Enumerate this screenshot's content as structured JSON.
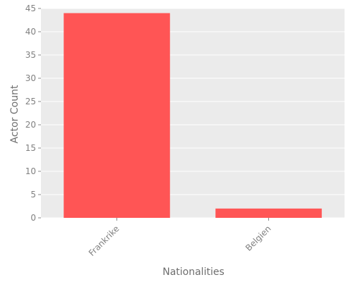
{
  "chart_data": {
    "type": "bar",
    "categories": [
      "Frankrike",
      "Belgien"
    ],
    "values": [
      44,
      2
    ],
    "xlabel": "Nationalities",
    "ylabel": "Actor Count",
    "ylim": [
      0,
      45
    ],
    "yticks": [
      0,
      5,
      10,
      15,
      20,
      25,
      30,
      35,
      40,
      45
    ],
    "grid": true,
    "legend": "none",
    "colors": {
      "bar": "#ff5555",
      "background": "#ebebeb",
      "grid": "#ffffff",
      "text": "#808080"
    }
  }
}
